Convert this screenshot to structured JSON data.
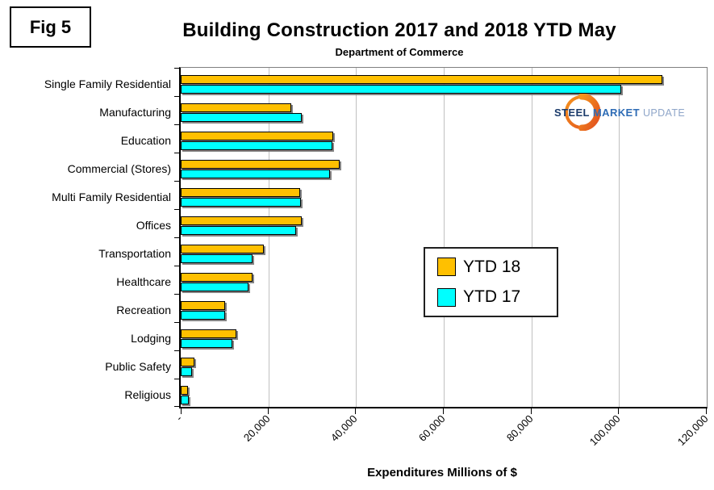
{
  "fig_label": "Fig 5",
  "logo": {
    "steel": "STEEL",
    "market": "MARKET",
    "update": "UPDATE"
  },
  "chart_data": {
    "type": "bar",
    "orientation": "horizontal",
    "title": "Building Construction 2017 and 2018 YTD May",
    "subtitle": "Department of Commerce",
    "xlabel": "Expenditures Millions of $",
    "xlim": [
      0,
      120000
    ],
    "x_ticks": [
      0,
      20000,
      40000,
      60000,
      80000,
      100000,
      120000
    ],
    "x_tick_labels": [
      "-",
      "20,000",
      "40,000",
      "60,000",
      "80,000",
      "100,000",
      "120,000"
    ],
    "grid": true,
    "legend_position": "center-right",
    "categories": [
      "Single Family Residential",
      "Manufacturing",
      "Education",
      "Commercial (Stores)",
      "Multi Family Residential",
      "Offices",
      "Transportation",
      "Healthcare",
      "Recreation",
      "Lodging",
      "Public Safety",
      "Religious"
    ],
    "series": [
      {
        "name": "YTD 18",
        "color": "#FFC000",
        "values": [
          109600,
          24900,
          34500,
          35800,
          26800,
          27300,
          18500,
          16100,
          9700,
          12300,
          2700,
          1300
        ]
      },
      {
        "name": "YTD 17",
        "color": "#00FFFF",
        "values": [
          100200,
          27200,
          34200,
          33700,
          27100,
          26000,
          16100,
          15100,
          9800,
          11400,
          2300,
          1500
        ]
      }
    ]
  }
}
